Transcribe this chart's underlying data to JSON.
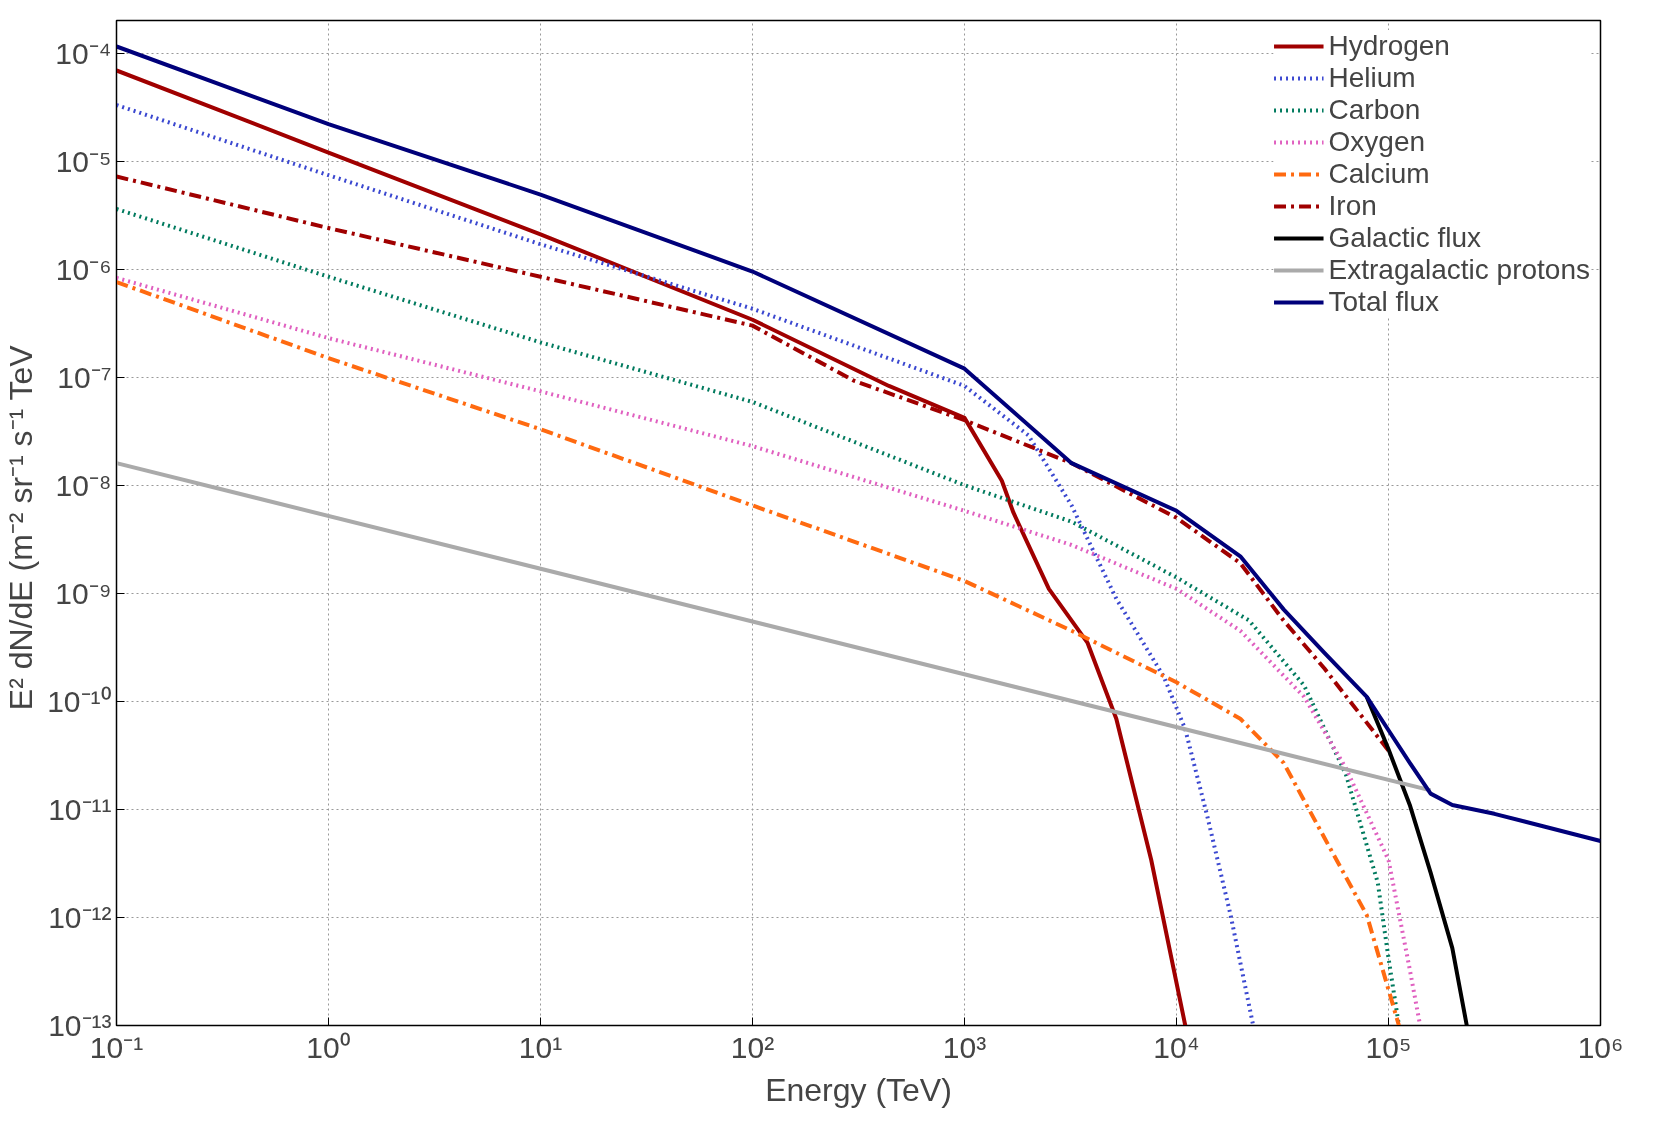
{
  "chart_data": {
    "type": "line",
    "xlabel": "Energy (TeV)",
    "ylabel": "E² dN/dE  (m⁻² sr⁻¹ s⁻¹ TeV",
    "log": "xy",
    "grid": true,
    "legend": "top right",
    "xlim": [
      0.1,
      1000000
    ],
    "ylim": [
      1e-13,
      0.0002
    ],
    "xticks": [
      {
        "value": 0.1,
        "label": "10⁻¹"
      },
      {
        "value": 1,
        "label": "10⁰"
      },
      {
        "value": 10,
        "label": "10¹"
      },
      {
        "value": 100,
        "label": "10²"
      },
      {
        "value": 1000,
        "label": "10³"
      },
      {
        "value": 10000,
        "label": "10⁴"
      },
      {
        "value": 100000,
        "label": "10⁵"
      },
      {
        "value": 1000000,
        "label": "10⁶"
      }
    ],
    "yticks": [
      {
        "value": 1e-13,
        "label": "10⁻¹³"
      },
      {
        "value": 1e-12,
        "label": "10⁻¹²"
      },
      {
        "value": 1e-11,
        "label": "10⁻¹¹"
      },
      {
        "value": 1e-10,
        "label": "10⁻¹⁰"
      },
      {
        "value": 1e-09,
        "label": "10⁻⁹"
      },
      {
        "value": 1e-08,
        "label": "10⁻⁸"
      },
      {
        "value": 1e-07,
        "label": "10⁻⁷"
      },
      {
        "value": 1e-06,
        "label": "10⁻⁶"
      },
      {
        "value": 1e-05,
        "label": "10⁻⁵"
      },
      {
        "value": 0.0001,
        "label": "10⁻⁴"
      }
    ],
    "series": [
      {
        "name": "Hydrogen",
        "color": "#a00000",
        "line_style": "solid",
        "x": [
          0.1,
          1,
          10,
          100,
          440,
          1000,
          1500,
          1700,
          2500,
          3800,
          5200,
          7600,
          11000
        ],
        "values": [
          6.9e-05,
          1.2e-05,
          2.1e-06,
          3.4e-07,
          8.3e-08,
          4.2e-08,
          1.1e-08,
          5.6e-09,
          1.1e-09,
          3.5e-10,
          6.9e-11,
          3.4e-12,
          1e-13
        ]
      },
      {
        "name": "Helium",
        "color": "#3b48d0",
        "line_style": "dotted",
        "x": [
          0.1,
          1,
          10,
          100,
          1000,
          2000,
          3200,
          5200,
          8700,
          11000,
          14000,
          18000,
          23000
        ],
        "values": [
          3.3e-05,
          7.4e-06,
          1.7e-06,
          4.3e-07,
          8.3e-08,
          2.9e-08,
          6.5e-09,
          8.9e-10,
          1.7e-10,
          5.5e-11,
          8.5e-12,
          1.05e-12,
          1e-13
        ]
      },
      {
        "name": "Carbon",
        "color": "#007a5e",
        "line_style": "dotted",
        "x": [
          0.1,
          1,
          10,
          100,
          1000,
          3200,
          10000,
          22000,
          40000,
          63000,
          89000,
          100000,
          112000
        ],
        "values": [
          3.6e-06,
          8.5e-07,
          2.1e-07,
          5.9e-08,
          1e-08,
          4.6e-09,
          1.4e-09,
          5.6e-10,
          1.4e-10,
          2.1e-11,
          2.1e-12,
          4.2e-13,
          1e-13
        ]
      },
      {
        "name": "Oxygen",
        "color": "#e060c0",
        "line_style": "dotted",
        "x": [
          0.1,
          1,
          10,
          100,
          1000,
          3200,
          10000,
          20000,
          40000,
          63000,
          100000,
          126000,
          141000
        ],
        "values": [
          8.3e-07,
          2.3e-07,
          7.4e-08,
          2.3e-08,
          5.8e-09,
          2.8e-09,
          1.1e-09,
          4.5e-10,
          1.1e-10,
          2.4e-11,
          3.4e-12,
          3.3e-13,
          1e-13
        ]
      },
      {
        "name": "Calcium",
        "color": "#ff6a10",
        "line_style": "dashdot",
        "x": [
          0.1,
          1,
          10,
          100,
          1000,
          3200,
          10000,
          20000,
          32000,
          50000,
          79000,
          112000
        ],
        "values": [
          7.6e-07,
          1.5e-07,
          3.3e-08,
          6.5e-09,
          1.3e-09,
          4.5e-10,
          1.5e-10,
          6.9e-11,
          2.7e-11,
          5.4e-12,
          1.05e-12,
          1e-13
        ]
      },
      {
        "name": "Iron",
        "color": "#a00000",
        "line_style": "dashdot",
        "x": [
          0.1,
          1,
          10,
          100,
          300,
          1000,
          3200,
          10000,
          20000,
          32000,
          50000,
          100000
        ],
        "values": [
          7.2e-06,
          2.4e-06,
          8.5e-07,
          3e-07,
          9.3e-08,
          4e-08,
          1.6e-08,
          5e-09,
          1.9e-09,
          5.6e-10,
          2e-10,
          3.5e-11
        ]
      },
      {
        "name": "Galactic flux",
        "color": "#000000",
        "line_style": "solid",
        "x": [
          79000,
          100000,
          126000,
          158000,
          200000,
          234000
        ],
        "values": [
          1.1e-10,
          3.6e-11,
          1.1e-11,
          2.6e-12,
          5.2e-13,
          1e-13
        ]
      },
      {
        "name": "Extragalactic protons",
        "color": "#aaaaaa",
        "line_style": "solid",
        "x": [
          0.1,
          158000
        ],
        "values": [
          1.6e-08,
          1.5e-11
        ]
      },
      {
        "name": "Total flux",
        "color": "#00007a",
        "line_style": "solid",
        "x": [
          0.1,
          1,
          10,
          100,
          1000,
          3200,
          10000,
          20000,
          32000,
          50000,
          79000,
          100000,
          126000,
          158000,
          200000,
          316000,
          1000000
        ],
        "values": [
          0.000115,
          2.2e-05,
          4.9e-06,
          9.5e-07,
          1.2e-07,
          1.6e-08,
          5.8e-09,
          2.2e-09,
          7.1e-10,
          2.8e-10,
          1.1e-10,
          5.4e-11,
          2.7e-11,
          1.4e-11,
          1.1e-11,
          9.1e-12,
          5.1e-12
        ]
      }
    ]
  }
}
